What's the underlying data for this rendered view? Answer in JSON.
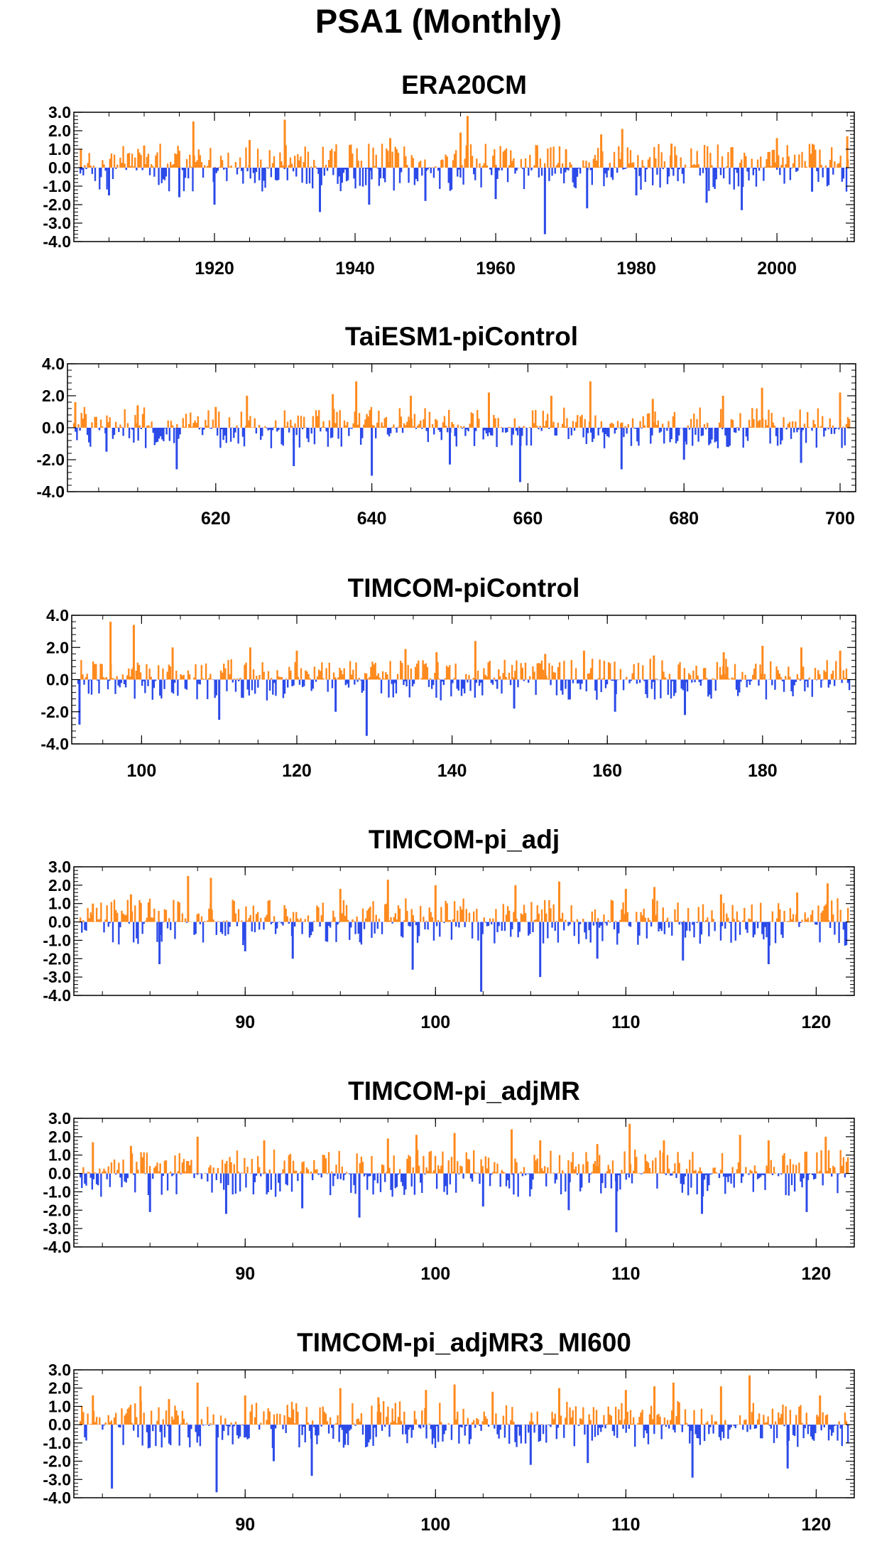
{
  "figure": {
    "title": "PSA1 (Monthly)"
  },
  "colors": {
    "positive": "#ff8a1e",
    "negative": "#2b4ae8",
    "axis": "#000000"
  },
  "chart_data": [
    {
      "type": "bar",
      "title": "ERA20CM",
      "xlabel": "",
      "ylabel": "",
      "xlim": [
        1900,
        2011
      ],
      "ylim": [
        -4.0,
        3.0
      ],
      "yticks": [
        3.0,
        2.0,
        1.0,
        0.0,
        -1.0,
        -2.0,
        -3.0,
        -4.0
      ],
      "ytick_labels": [
        "3.0",
        "2.0",
        "1.0",
        "0.0",
        "-1.0",
        "-2.0",
        "-3.0",
        "-4.0"
      ],
      "xticks": [
        1920,
        1940,
        1960,
        1980,
        2000
      ],
      "xtick_labels": [
        "1920",
        "1940",
        "1960",
        "1980",
        "2000"
      ],
      "grid": false,
      "x": [
        1901,
        1905,
        1910,
        1915,
        1917,
        1920,
        1925,
        1930,
        1935,
        1942,
        1945,
        1950,
        1955,
        1956,
        1960,
        1967,
        1970,
        1973,
        1975,
        1978,
        1980,
        1985,
        1990,
        1995,
        2000,
        2005,
        2010
      ],
      "values": [
        1.0,
        -1.5,
        1.2,
        -1.6,
        2.5,
        -2.0,
        1.5,
        2.6,
        -2.4,
        -2.0,
        1.6,
        -1.8,
        1.9,
        2.8,
        -1.7,
        -3.6,
        1.0,
        -2.2,
        1.8,
        2.1,
        -1.5,
        1.3,
        -1.9,
        -2.3,
        1.6,
        -1.3,
        1.7
      ]
    },
    {
      "type": "bar",
      "title": "TaiESM1-piControl",
      "xlabel": "",
      "ylabel": "",
      "xlim": [
        601,
        702
      ],
      "ylim": [
        -4.0,
        4.0
      ],
      "yticks": [
        4.0,
        2.0,
        0.0,
        -2.0,
        -4.0
      ],
      "ytick_labels": [
        "4.0",
        "2.0",
        "0.0",
        "-2.0",
        "-4.0"
      ],
      "xticks": [
        620,
        640,
        660,
        680,
        700
      ],
      "xtick_labels": [
        "620",
        "640",
        "660",
        "680",
        "700"
      ],
      "grid": false,
      "x": [
        602,
        606,
        610,
        615,
        620,
        624,
        630,
        635,
        638,
        640,
        645,
        650,
        655,
        659,
        663,
        668,
        672,
        676,
        680,
        685,
        690,
        695,
        700
      ],
      "values": [
        1.6,
        -1.5,
        1.4,
        -2.6,
        1.3,
        2.0,
        -2.4,
        2.1,
        2.9,
        -3.0,
        2.0,
        -2.3,
        2.2,
        -3.4,
        2.0,
        2.9,
        -2.6,
        1.8,
        -2.0,
        2.0,
        2.5,
        -2.2,
        2.2
      ]
    },
    {
      "type": "bar",
      "title": "TIMCOM-piControl",
      "xlabel": "",
      "ylabel": "",
      "xlim": [
        91,
        192
      ],
      "ylim": [
        -4.0,
        4.0
      ],
      "yticks": [
        4.0,
        2.0,
        0.0,
        -2.0,
        -4.0
      ],
      "ytick_labels": [
        "4.0",
        "2.0",
        "0.0",
        "-2.0",
        "-4.0"
      ],
      "xticks": [
        100,
        120,
        140,
        160,
        180
      ],
      "xtick_labels": [
        "100",
        "120",
        "140",
        "160",
        "180"
      ],
      "grid": false,
      "x": [
        92,
        96,
        99,
        104,
        110,
        114,
        120,
        125,
        129,
        134,
        138,
        143,
        148,
        152,
        157,
        161,
        166,
        170,
        175,
        180,
        185,
        190
      ],
      "values": [
        -2.8,
        3.6,
        3.4,
        2.0,
        -2.5,
        2.0,
        1.8,
        -2.0,
        -3.5,
        1.9,
        1.7,
        2.4,
        -1.8,
        1.6,
        1.8,
        -2.0,
        1.5,
        -2.2,
        1.7,
        2.1,
        2.0,
        1.8
      ]
    },
    {
      "type": "bar",
      "title": "TIMCOM-pi_adj",
      "xlabel": "",
      "ylabel": "",
      "xlim": [
        81,
        122
      ],
      "ylim": [
        -4.0,
        3.0
      ],
      "yticks": [
        3.0,
        2.0,
        1.0,
        0.0,
        -1.0,
        -2.0,
        -3.0,
        -4.0
      ],
      "ytick_labels": [
        "3.0",
        "2.0",
        "1.0",
        "0.0",
        "-1.0",
        "-2.0",
        "-3.0",
        "-4.0"
      ],
      "xticks": [
        90,
        100,
        110,
        120
      ],
      "xtick_labels": [
        "90",
        "100",
        "110",
        "120"
      ],
      "grid": false,
      "x": [
        82,
        84,
        85.5,
        87,
        88.2,
        90,
        92.5,
        95,
        97.5,
        98.8,
        100,
        102.4,
        104.2,
        105.5,
        106.5,
        108.5,
        110,
        111.5,
        113,
        115,
        117.5,
        119,
        120.6
      ],
      "values": [
        1.0,
        1.5,
        -2.3,
        2.5,
        2.4,
        -1.6,
        -2.0,
        1.8,
        2.3,
        -2.6,
        2.0,
        -3.8,
        2.0,
        -3.0,
        2.2,
        -2.0,
        1.8,
        1.9,
        -2.1,
        1.5,
        -2.3,
        1.6,
        2.1
      ]
    },
    {
      "type": "bar",
      "title": "TIMCOM-pi_adjMR",
      "xlabel": "",
      "ylabel": "",
      "xlim": [
        81,
        122
      ],
      "ylim": [
        -4.0,
        3.0
      ],
      "yticks": [
        3.0,
        2.0,
        1.0,
        0.0,
        -1.0,
        -2.0,
        -3.0,
        -4.0
      ],
      "ytick_labels": [
        "3.0",
        "2.0",
        "1.0",
        "0.0",
        "-1.0",
        "-2.0",
        "-3.0",
        "-4.0"
      ],
      "xticks": [
        90,
        100,
        110,
        120
      ],
      "xtick_labels": [
        "90",
        "100",
        "110",
        "120"
      ],
      "grid": false,
      "x": [
        82,
        84,
        85,
        87.5,
        89,
        91,
        93,
        96,
        97.5,
        99,
        101,
        102.5,
        104,
        105.5,
        107,
        108.5,
        109.5,
        110.2,
        112,
        114,
        116,
        117.5,
        119.5,
        120.5
      ],
      "values": [
        1.7,
        1.5,
        -2.1,
        2.0,
        -2.2,
        1.8,
        -1.9,
        -2.4,
        1.9,
        2.1,
        2.2,
        -1.8,
        2.4,
        1.8,
        -2.0,
        1.6,
        -3.2,
        2.7,
        1.8,
        -2.2,
        2.1,
        1.8,
        -2.1,
        2.0
      ]
    },
    {
      "type": "bar",
      "title": "TIMCOM-pi_adjMR3_MI600",
      "xlabel": "",
      "ylabel": "",
      "xlim": [
        81,
        122
      ],
      "ylim": [
        -4.0,
        3.0
      ],
      "yticks": [
        3.0,
        2.0,
        1.0,
        0.0,
        -1.0,
        -2.0,
        -3.0,
        -4.0
      ],
      "ytick_labels": [
        "3.0",
        "2.0",
        "1.0",
        "0.0",
        "-1.0",
        "-2.0",
        "-3.0",
        "-4.0"
      ],
      "xticks": [
        90,
        100,
        110,
        120
      ],
      "xtick_labels": [
        "90",
        "100",
        "110",
        "120"
      ],
      "grid": false,
      "x": [
        82,
        83,
        84.5,
        86,
        87.5,
        88.5,
        90,
        91.5,
        93.5,
        95,
        97,
        99.5,
        101,
        103,
        105,
        106.5,
        108,
        110,
        111.5,
        112.5,
        113.5,
        115,
        116.5,
        118.5,
        120.2
      ],
      "values": [
        1.6,
        -3.5,
        2.1,
        1.4,
        2.3,
        -3.7,
        1.6,
        -2.0,
        -2.8,
        2.0,
        1.5,
        1.9,
        2.2,
        1.8,
        -2.2,
        2.0,
        -2.1,
        1.9,
        2.1,
        2.3,
        -2.9,
        2.1,
        2.7,
        -2.4,
        1.6
      ]
    }
  ]
}
